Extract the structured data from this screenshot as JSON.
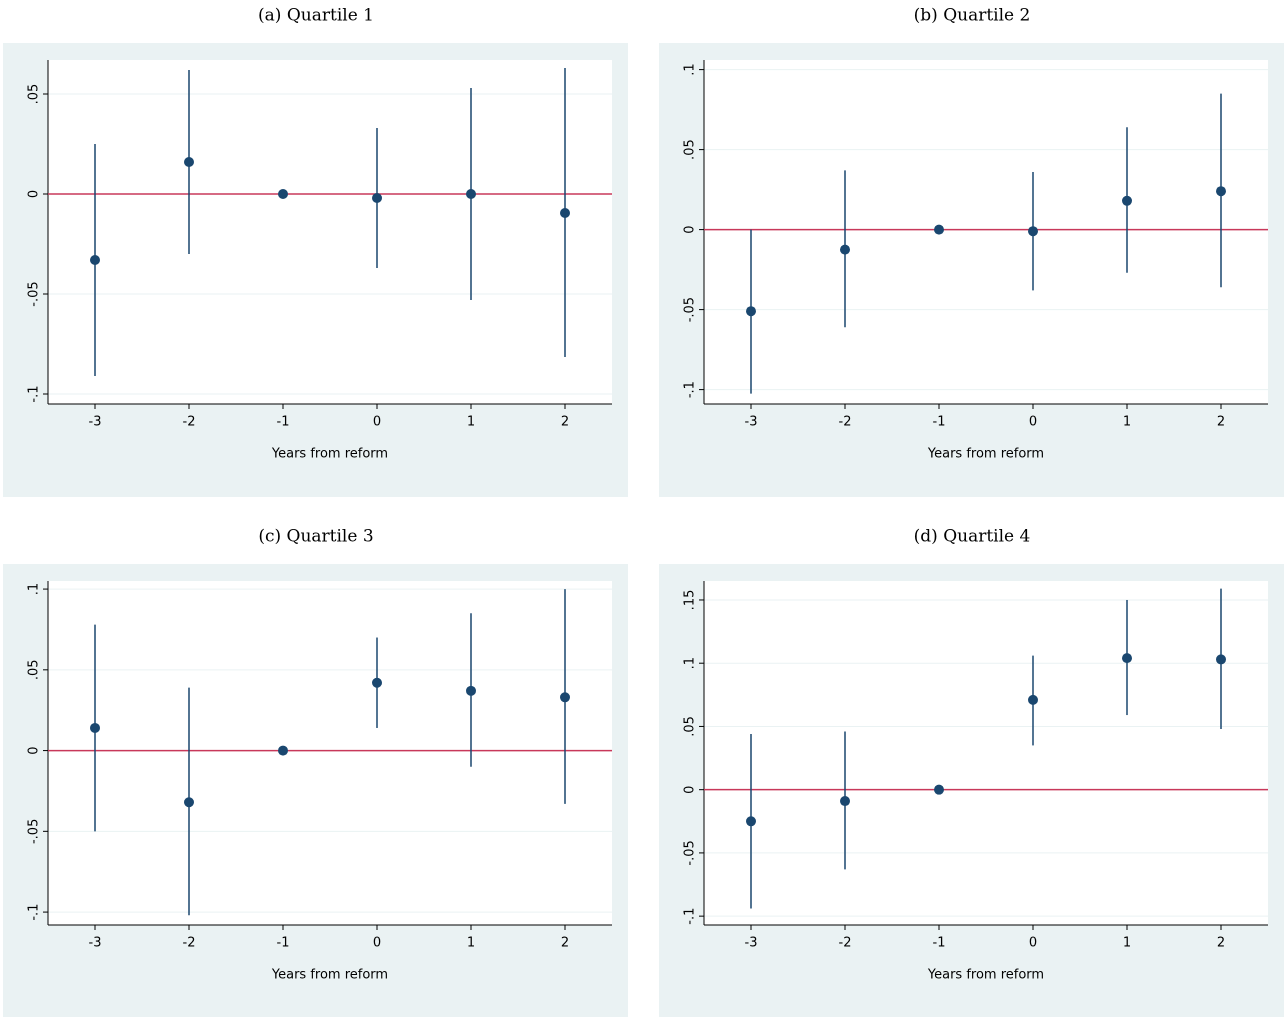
{
  "chart_data": [
    {
      "type": "scatter",
      "title": "(a) Quartile 1",
      "x_label": "Years from reform",
      "x": [
        -3,
        -2,
        -1,
        0,
        1,
        2
      ],
      "values": [
        -0.033,
        0.016,
        0,
        -0.002,
        0,
        -0.0095
      ],
      "ci_low": [
        -0.091,
        -0.03,
        0,
        -0.037,
        -0.053,
        -0.0815
      ],
      "ci_high": [
        0.025,
        0.062,
        0,
        0.033,
        0.053,
        0.063
      ],
      "color": "#1a476f",
      "reference_line": 0,
      "reference_color": "#c8385a",
      "xlim": [
        -3.5,
        2.5
      ],
      "xticks": [
        -3,
        -2,
        -1,
        0,
        1,
        2
      ],
      "ylim": [
        -0.105,
        0.067
      ],
      "yticks": [
        {
          "value": 0.05,
          "label": ".05"
        },
        0,
        {
          "value": -0.05,
          "label": "-.05"
        },
        {
          "value": -0.1,
          "label": "-.1"
        }
      ],
      "grid": true
    },
    {
      "type": "scatter",
      "title": "(b) Quartile 2",
      "x_label": "Years from reform",
      "x": [
        -3,
        -2,
        -1,
        0,
        1,
        2
      ],
      "values": [
        -0.051,
        -0.0125,
        0,
        -0.001,
        0.018,
        0.024
      ],
      "ci_low": [
        -0.1025,
        -0.061,
        0,
        -0.038,
        -0.027,
        -0.036
      ],
      "ci_high": [
        0.0,
        0.037,
        0,
        0.036,
        0.064,
        0.085
      ],
      "color": "#1a476f",
      "reference_line": 0,
      "reference_color": "#c8385a",
      "xlim": [
        -3.5,
        2.5
      ],
      "xticks": [
        -3,
        -2,
        -1,
        0,
        1,
        2
      ],
      "ylim": [
        -0.109,
        0.106
      ],
      "yticks": [
        {
          "value": 0.1,
          "label": ".1"
        },
        {
          "value": 0.05,
          "label": ".05"
        },
        0,
        {
          "value": -0.05,
          "label": "-.05"
        },
        {
          "value": -0.1,
          "label": "-.1"
        }
      ],
      "grid": true
    },
    {
      "type": "scatter",
      "title": "(c) Quartile 3",
      "x_label": "Years from reform",
      "x": [
        -3,
        -2,
        -1,
        0,
        1,
        2
      ],
      "values": [
        0.014,
        -0.032,
        0,
        0.042,
        0.037,
        0.033
      ],
      "ci_low": [
        -0.05,
        -0.102,
        0,
        0.014,
        -0.01,
        -0.033
      ],
      "ci_high": [
        0.078,
        0.039,
        0,
        0.07,
        0.085,
        0.1
      ],
      "color": "#1a476f",
      "reference_line": 0,
      "reference_color": "#c8385a",
      "xlim": [
        -3.5,
        2.5
      ],
      "xticks": [
        -3,
        -2,
        -1,
        0,
        1,
        2
      ],
      "ylim": [
        -0.108,
        0.105
      ],
      "yticks": [
        {
          "value": 0.1,
          "label": ".1"
        },
        {
          "value": 0.05,
          "label": ".05"
        },
        0,
        {
          "value": -0.05,
          "label": "-.05"
        },
        {
          "value": -0.1,
          "label": "-.1"
        }
      ],
      "grid": true
    },
    {
      "type": "scatter",
      "title": "(d) Quartile 4",
      "x_label": "Years from reform",
      "x": [
        -3,
        -2,
        -1,
        0,
        1,
        2
      ],
      "values": [
        -0.025,
        -0.009,
        0,
        0.071,
        0.104,
        0.103
      ],
      "ci_low": [
        -0.094,
        -0.063,
        0,
        0.035,
        0.059,
        0.048
      ],
      "ci_high": [
        0.044,
        0.046,
        0,
        0.106,
        0.15,
        0.159
      ],
      "color": "#1a476f",
      "reference_line": 0,
      "reference_color": "#c8385a",
      "xlim": [
        -3.5,
        2.5
      ],
      "xticks": [
        -3,
        -2,
        -1,
        0,
        1,
        2
      ],
      "ylim": [
        -0.107,
        0.165
      ],
      "yticks": [
        {
          "value": 0.15,
          "label": ".15"
        },
        {
          "value": 0.1,
          "label": ".1"
        },
        {
          "value": 0.05,
          "label": ".05"
        },
        0,
        {
          "value": -0.05,
          "label": "-.05"
        },
        {
          "value": -0.1,
          "label": "-.1"
        }
      ],
      "grid": true
    }
  ]
}
